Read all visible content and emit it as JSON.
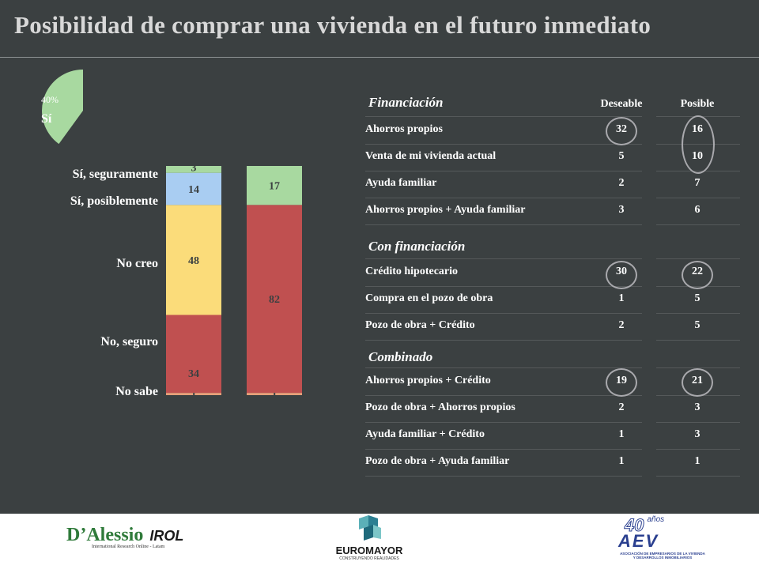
{
  "title": "Posibilidad de comprar una vivienda en el futuro inmediato",
  "pie": {
    "percent_label": "40%",
    "label": "Sí",
    "fraction": 0.4,
    "color": "#a8d9a0"
  },
  "chart_data": {
    "type": "bar",
    "stacked": true,
    "categories": [
      "Sí, seguramente",
      "Sí, posiblemente",
      "No creo",
      "No, seguro",
      "No sabe"
    ],
    "bars": [
      {
        "segments": [
          {
            "category": "No sabe",
            "value": 1,
            "color": "#e8a07a"
          },
          {
            "category": "No, seguro",
            "value": 34,
            "color": "#c05050"
          },
          {
            "category": "No creo",
            "value": 48,
            "color": "#fbdc7a"
          },
          {
            "category": "Sí, posiblemente",
            "value": 14,
            "color": "#a9cdf2"
          },
          {
            "category": "Sí, seguramente",
            "value": 3,
            "color": "#a8d9a0"
          }
        ]
      },
      {
        "segments": [
          {
            "category": "No sabe",
            "value": 1,
            "color": "#e8a07a"
          },
          {
            "category": "No",
            "value": 82,
            "color": "#c05050"
          },
          {
            "category": "Sí",
            "value": 17,
            "color": "#a8d9a0"
          }
        ]
      }
    ],
    "ylim": [
      0,
      100
    ]
  },
  "table": {
    "columns": [
      "Deseable",
      "Posible"
    ],
    "sections": [
      {
        "title": "Financiación",
        "rows": [
          {
            "label": "Ahorros propios",
            "deseable": "32",
            "posible": "16"
          },
          {
            "label": "Venta de mi vivienda actual",
            "deseable": "5",
            "posible": "10"
          },
          {
            "label": "Ayuda familiar",
            "deseable": "2",
            "posible": "7"
          },
          {
            "label": "Ahorros propios + Ayuda familiar",
            "deseable": "3",
            "posible": "6"
          }
        ]
      },
      {
        "title": "Con financiación",
        "rows": [
          {
            "label": "Crédito hipotecario",
            "deseable": "30",
            "posible": "22"
          },
          {
            "label": "Compra en el pozo de obra",
            "deseable": "1",
            "posible": "5"
          },
          {
            "label": "Pozo de obra + Crédito",
            "deseable": "2",
            "posible": "5"
          }
        ]
      },
      {
        "title": "Combinado",
        "rows": [
          {
            "label": "Ahorros propios + Crédito",
            "deseable": "19",
            "posible": "21"
          },
          {
            "label": "Pozo de obra + Ahorros propios",
            "deseable": "2",
            "posible": "3"
          },
          {
            "label": "Ayuda familiar + Crédito",
            "deseable": "1",
            "posible": "3"
          },
          {
            "label": "Pozo de obra + Ayuda familiar",
            "deseable": "1",
            "posible": "1"
          }
        ]
      }
    ]
  },
  "footer": {
    "logo1_main": "D’Alessio",
    "logo1_brand": "IROL",
    "logo1_sub": "International Research Online - Latam",
    "logo2_name": "EUROMAYOR",
    "logo2_sub": "CONSTRUYENDO REALIDADES",
    "logo3_anniv": "40",
    "logo3_anios": "años",
    "logo3_name": "AEV",
    "logo3_sub1": "ASOCIACIÓN DE EMPRESARIOS DE LA VIVIENDA",
    "logo3_sub2": "Y DESARROLLOS INMOBILIARIOS"
  }
}
